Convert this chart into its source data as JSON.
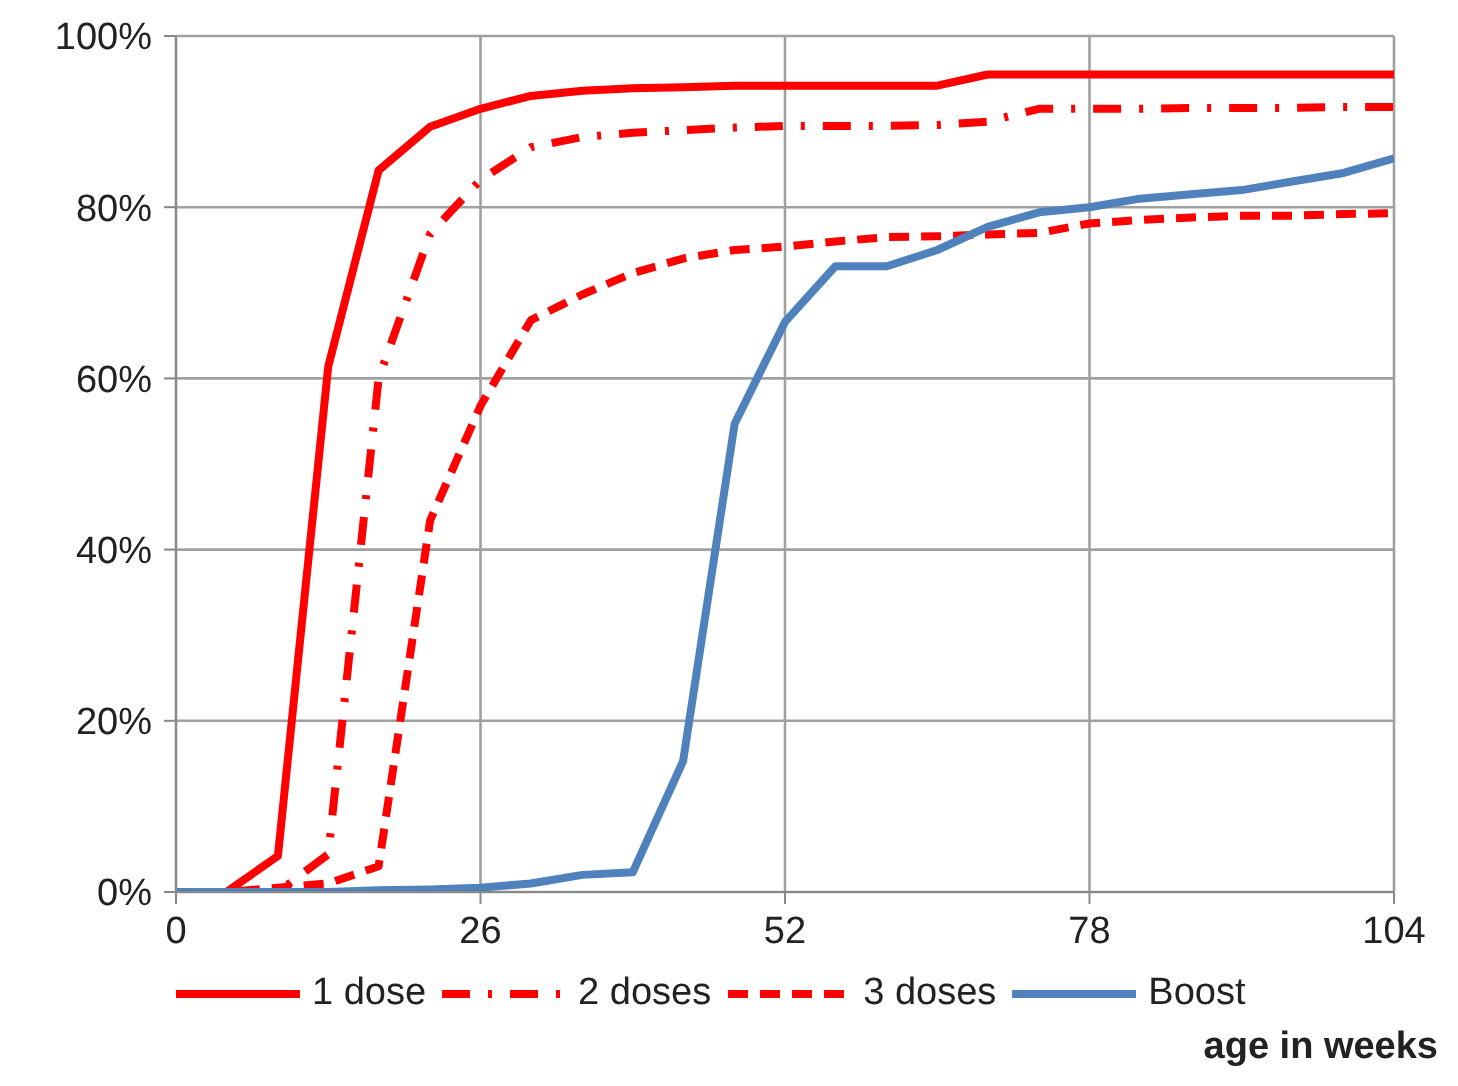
{
  "chart_data": {
    "type": "line",
    "xlabel": "age in weeks",
    "x": [
      0,
      4.3,
      8.7,
      13,
      17.3,
      21.7,
      26,
      30.3,
      34.7,
      39,
      43.3,
      47.7,
      52,
      56.3,
      60.7,
      65,
      69.3,
      73.7,
      78,
      82.3,
      86.7,
      91,
      95.3,
      99.7,
      104
    ],
    "series": [
      {
        "name": "1 dose",
        "color": "#ff0000",
        "line_style": "solid",
        "values": [
          0,
          0,
          4.2,
          61.4,
          84.3,
          89.4,
          91.5,
          93,
          93.6,
          93.9,
          94,
          94.2,
          94.2,
          94.2,
          94.2,
          94.2,
          95.5,
          95.5,
          95.5,
          95.5,
          95.5,
          95.5,
          95.5,
          95.5,
          95.5
        ]
      },
      {
        "name": "2 doses",
        "color": "#ff0000",
        "line_style": "dashdot",
        "values": [
          0,
          0,
          0,
          4.4,
          60,
          76.9,
          83.2,
          87,
          88.2,
          88.7,
          89,
          89.3,
          89.5,
          89.5,
          89.5,
          89.6,
          90,
          91.5,
          91.5,
          91.5,
          91.6,
          91.6,
          91.6,
          91.7,
          91.7
        ]
      },
      {
        "name": "3 doses",
        "color": "#ff0000",
        "line_style": "dashed",
        "values": [
          0,
          0,
          0.5,
          1,
          3,
          43.4,
          56.8,
          66.8,
          69.8,
          72.3,
          74,
          75,
          75.4,
          76,
          76.5,
          76.6,
          76.8,
          77,
          78.1,
          78.5,
          78.8,
          79,
          79,
          79.2,
          79.3
        ]
      },
      {
        "name": "Boost",
        "color": "#4f81bd",
        "line_style": "solid",
        "values": [
          0,
          0,
          0,
          0,
          0.2,
          0.3,
          0.5,
          1,
          2,
          2.3,
          15.3,
          54.7,
          66.6,
          73.1,
          73.1,
          75,
          77.7,
          79.4,
          80,
          81,
          81.5,
          82,
          83,
          84,
          85.7
        ]
      }
    ],
    "xlim": [
      0,
      104
    ],
    "xticks": [
      0,
      26,
      52,
      78,
      104
    ],
    "ylim": [
      0,
      100
    ],
    "yticks": [
      {
        "value": 0,
        "label": "0%"
      },
      {
        "value": 20,
        "label": "20%"
      },
      {
        "value": 40,
        "label": "40%"
      },
      {
        "value": 60,
        "label": "60%"
      },
      {
        "value": 80,
        "label": "80%"
      },
      {
        "value": 100,
        "label": "100%"
      }
    ],
    "grid": true,
    "legend": "bottom",
    "marker": "none"
  }
}
